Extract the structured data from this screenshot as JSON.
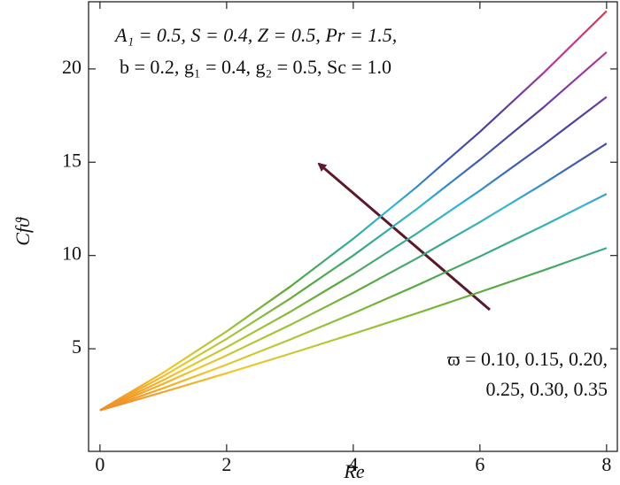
{
  "chart_data": {
    "type": "line",
    "xlabel": "Re",
    "ylabel": "Cfϑ",
    "annotations": [
      "A₁ = 0.5, S = 0.4, Z = 0.5, Pr = 1.5,",
      "b = 0.2, g₁ = 0.4, g₂ = 0.5, Sc = 1.0",
      "ϖ = 0.10, 0.15, 0.20,",
      "0.25, 0.30, 0.35"
    ],
    "x": [
      0,
      1,
      2,
      3,
      4,
      5,
      6,
      7,
      8
    ],
    "series": [
      {
        "values": [
          1.7,
          3.72,
          5.93,
          8.32,
          10.9,
          13.67,
          16.63,
          19.77,
          23.1
        ]
      },
      {
        "values": [
          1.7,
          3.53,
          5.53,
          7.68,
          10.0,
          12.48,
          15.13,
          17.93,
          20.9
        ]
      },
      {
        "values": [
          1.7,
          3.32,
          5.08,
          6.97,
          9.0,
          11.17,
          13.48,
          15.92,
          18.5
        ]
      },
      {
        "values": [
          1.7,
          3.12,
          4.64,
          6.27,
          8.0,
          9.84,
          11.79,
          13.84,
          16.0
        ]
      },
      {
        "values": [
          1.7,
          2.89,
          4.15,
          5.49,
          6.9,
          8.39,
          9.95,
          11.59,
          13.3
        ]
      },
      {
        "values": [
          1.7,
          2.68,
          3.69,
          4.73,
          5.8,
          6.9,
          8.04,
          9.2,
          10.4
        ]
      }
    ],
    "colormap": [
      "#e8352a",
      "#f08a2a",
      "#f2c72e",
      "#9cc43a",
      "#5aa83a",
      "#3aa88a",
      "#33b7d9",
      "#3f5fb0",
      "#4a3f9c",
      "#8a3aa0",
      "#c93590",
      "#e33a3a"
    ],
    "xlim": [
      -0.18,
      8.17
    ],
    "xticks": [
      0,
      2,
      4,
      6,
      8
    ],
    "ylim": [
      -0.5,
      23.6
    ],
    "yticks": [
      5,
      10,
      15,
      20
    ]
  }
}
